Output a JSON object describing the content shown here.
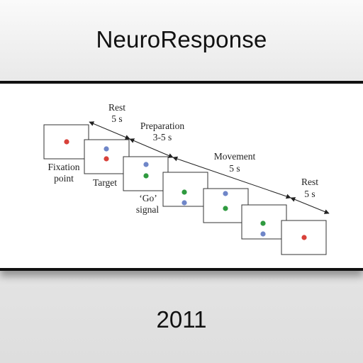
{
  "header": {
    "title": "NeuroResponse"
  },
  "figure": {
    "phases": [
      {
        "name": "Rest",
        "duration": "5 s"
      },
      {
        "name": "Preparation",
        "duration": "3-5 s"
      },
      {
        "name": "Movement",
        "duration": "5 s"
      },
      {
        "name": "Rest",
        "duration": "5 s"
      }
    ],
    "labels": {
      "fixation_line1": "Fixation",
      "fixation_line2": "point",
      "target": "Target",
      "go_line1": "‘Go’",
      "go_line2": "signal"
    },
    "colors": {
      "red": "#d8413a",
      "blue": "#6f86c8",
      "green": "#2f9a3f"
    }
  },
  "footer": {
    "year": "2011"
  }
}
